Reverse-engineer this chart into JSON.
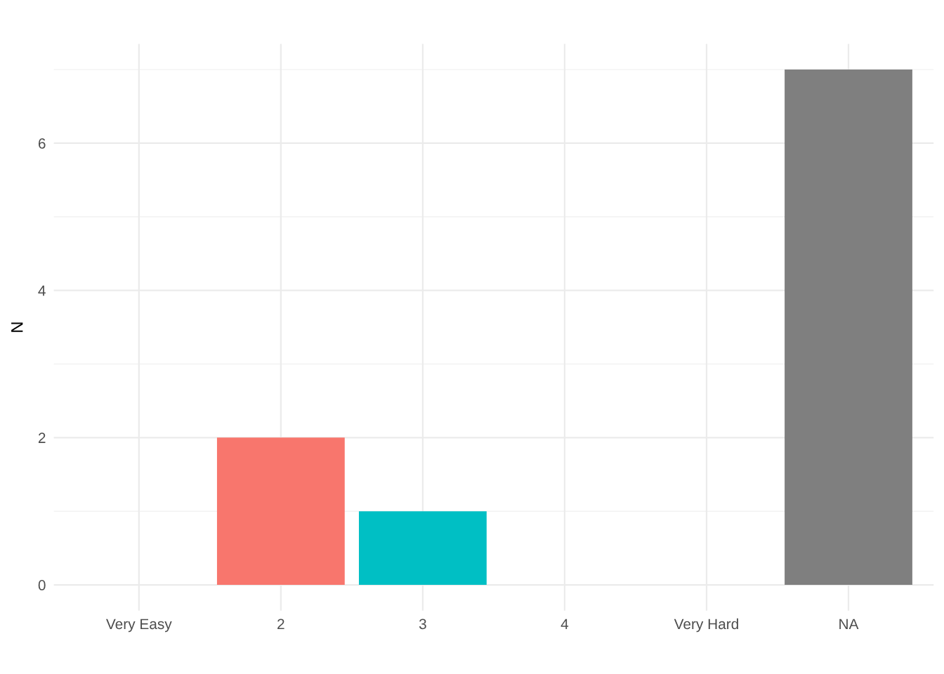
{
  "chart_data": {
    "type": "bar",
    "ylabel": "N",
    "categories": [
      "Very Easy",
      "2",
      "3",
      "4",
      "Very Hard",
      "NA"
    ],
    "values": [
      0,
      2,
      1,
      0,
      0,
      7
    ],
    "colors": [
      "#f8766d",
      "#f8766d",
      "#00bfc4",
      "#7cae00",
      "#c77cff",
      "#7f7f7f"
    ],
    "ylim": [
      -0.35,
      7.35
    ],
    "yticks": [
      0,
      2,
      4,
      6
    ],
    "grid": true
  }
}
